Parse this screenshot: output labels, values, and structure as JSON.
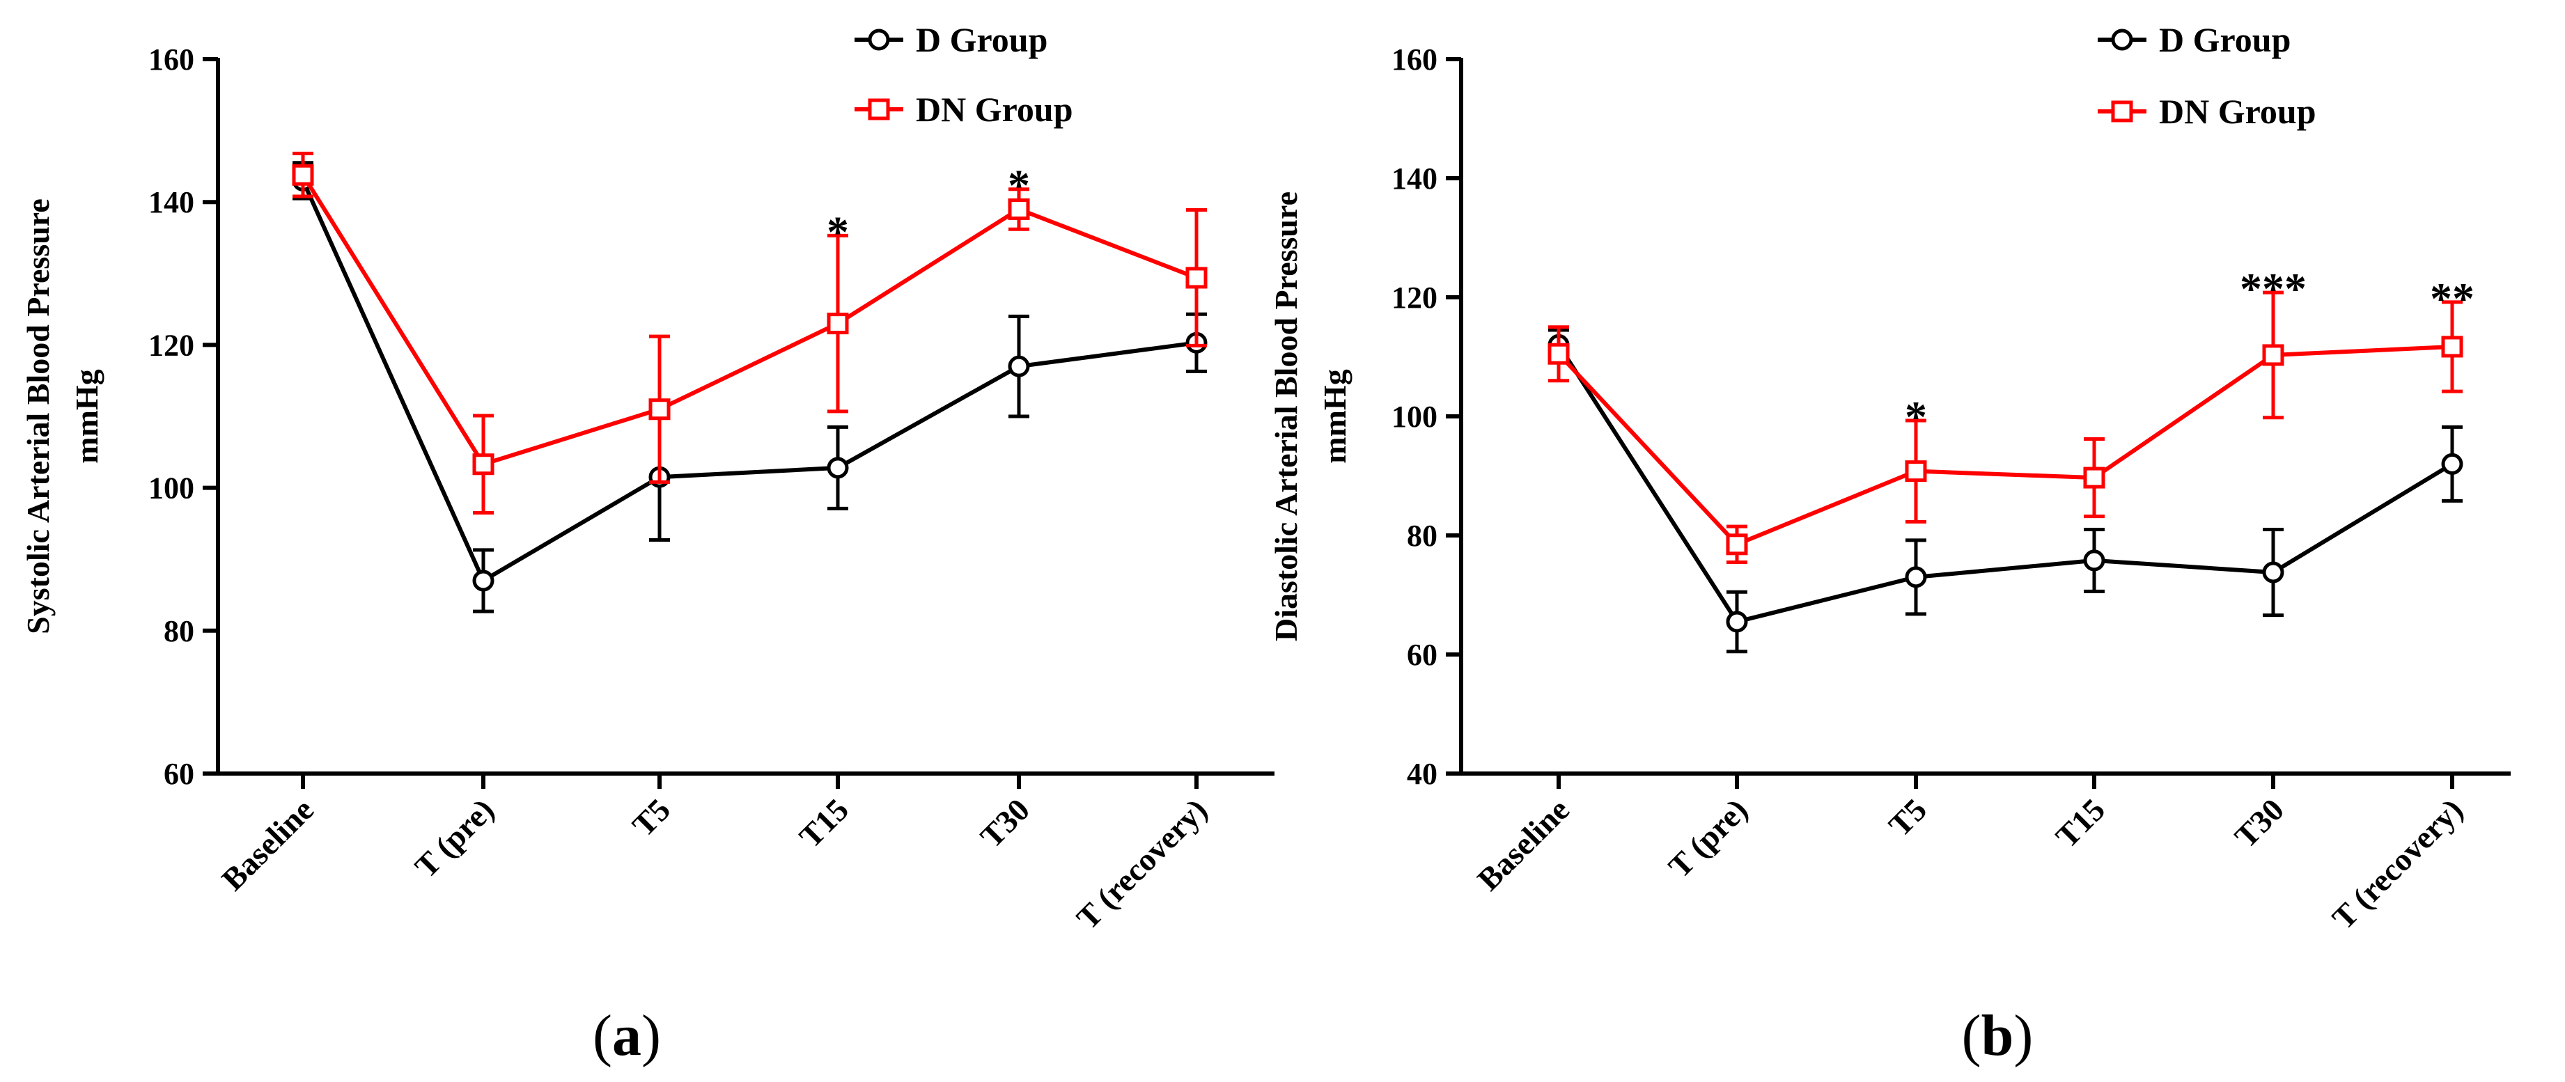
{
  "colors": {
    "d_group": "#000000",
    "dn_group": "#ff0000"
  },
  "chart_data": [
    {
      "type": "line",
      "panel": "a",
      "panel_label": [
        "(",
        "a",
        ")"
      ],
      "ylabel_lines": [
        "Systolic Arterial Blood Pressure",
        "mmHg"
      ],
      "xlabel": "",
      "categories": [
        "Baseline",
        "T (pre)",
        "T5",
        "T15",
        "T30",
        "T (recovery)"
      ],
      "ylim": [
        60,
        160
      ],
      "yticks": [
        60,
        80,
        100,
        120,
        140,
        160
      ],
      "legend_position": "top-right",
      "series": [
        {
          "name": "D Group",
          "marker": "circle",
          "color": "#000000",
          "values": [
            143,
            87,
            101.5,
            102.8,
            117,
            120.3
          ],
          "errors": [
            2.5,
            4.3,
            8.8,
            5.7,
            7,
            4
          ]
        },
        {
          "name": "DN Group",
          "marker": "square",
          "color": "#ff0000",
          "values": [
            143.8,
            103.3,
            111,
            123,
            139,
            129.4
          ],
          "errors": [
            3,
            6.8,
            10.2,
            12.3,
            2.8,
            9.5
          ]
        }
      ],
      "annotations": [
        {
          "category": "T15",
          "text": "*"
        },
        {
          "category": "T30",
          "text": "*"
        }
      ]
    },
    {
      "type": "line",
      "panel": "b",
      "panel_label": [
        "(",
        "b",
        ")"
      ],
      "ylabel_lines": [
        "Diastolic Arterial Blood Pressure",
        "mmHg"
      ],
      "xlabel": "",
      "categories": [
        "Baseline",
        "T (pre)",
        "T5",
        "T15",
        "T30",
        "T (recovery)"
      ],
      "ylim": [
        40,
        160
      ],
      "yticks": [
        40,
        60,
        80,
        100,
        120,
        140,
        160
      ],
      "legend_position": "top-right",
      "series": [
        {
          "name": "D Group",
          "marker": "circle",
          "color": "#000000",
          "values": [
            112,
            65.5,
            73,
            75.8,
            73.8,
            92
          ],
          "errors": [
            2.5,
            5,
            6.2,
            5.2,
            7.2,
            6.2
          ]
        },
        {
          "name": "DN Group",
          "marker": "square",
          "color": "#ff0000",
          "values": [
            110.5,
            78.5,
            90.8,
            89.7,
            110.3,
            111.7
          ],
          "errors": [
            4.5,
            3,
            8.5,
            6.5,
            10.5,
            7.5
          ]
        }
      ],
      "annotations": [
        {
          "category": "T5",
          "text": "*"
        },
        {
          "category": "T30",
          "text": "***"
        },
        {
          "category": "T (recovery)",
          "text": "**"
        }
      ]
    }
  ]
}
